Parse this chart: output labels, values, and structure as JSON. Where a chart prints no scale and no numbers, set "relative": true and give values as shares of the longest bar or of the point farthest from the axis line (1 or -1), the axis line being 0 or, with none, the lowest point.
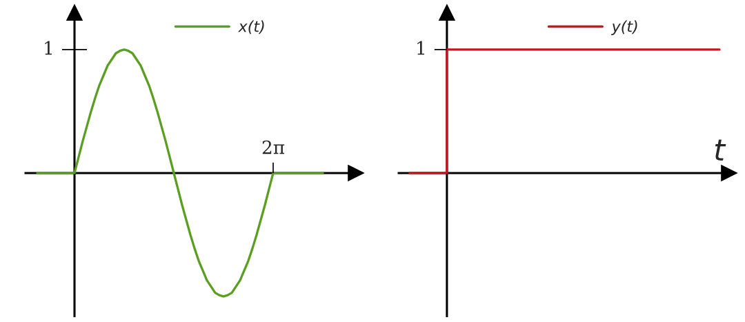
{
  "chart_data": [
    {
      "type": "line",
      "relative": true,
      "legend": "top",
      "categories": [
        null,
        null,
        null,
        null,
        null,
        null,
        null,
        null,
        null,
        null,
        null,
        null,
        null,
        null,
        null,
        null,
        null,
        null,
        null,
        null,
        null,
        null,
        null,
        null,
        null,
        null,
        null,
        null,
        null,
        null,
        null,
        null,
        null,
        null,
        null,
        null,
        null,
        null,
        null,
        null,
        null,
        null,
        null,
        null,
        null,
        null,
        null,
        null,
        null,
        null,
        null,
        null,
        null,
        null,
        null,
        null,
        null,
        null,
        null,
        null,
        null,
        null,
        null,
        null,
        null,
        null,
        null,
        null,
        null,
        null
      ],
      "annotations": [
        "1",
        "2π"
      ],
      "series": [
        {
          "name": "x(t)",
          "color": "#5a9e22",
          "values": [
            0,
            0,
            0,
            0,
            0,
            0,
            0,
            0,
            0,
            0,
            0.13,
            0.26,
            0.38,
            0.5,
            0.61,
            0.71,
            0.79,
            0.87,
            0.92,
            0.97,
            0.99,
            1,
            0.99,
            0.97,
            0.92,
            0.87,
            0.79,
            0.71,
            0.61,
            0.5,
            0.38,
            0.26,
            0.13,
            0,
            -0.13,
            -0.26,
            -0.38,
            -0.5,
            -0.61,
            -0.71,
            -0.79,
            -0.87,
            -0.92,
            -0.97,
            -0.99,
            -1,
            -0.99,
            -0.97,
            -0.92,
            -0.87,
            -0.79,
            -0.71,
            -0.61,
            -0.5,
            -0.38,
            -0.26,
            -0.13,
            0,
            0,
            0,
            0,
            0,
            0,
            0,
            0,
            0,
            0,
            0,
            0,
            0
          ]
        }
      ]
    },
    {
      "type": "step",
      "relative": true,
      "xlabel": "t",
      "legend": "top",
      "categories": [
        null,
        null,
        null,
        null,
        null,
        null,
        null,
        null,
        null,
        null,
        null,
        null,
        null,
        null,
        null,
        null,
        null,
        null,
        null,
        null,
        null,
        null,
        null,
        null,
        null,
        null
      ],
      "annotations": [
        "1"
      ],
      "series": [
        {
          "name": "y(t)",
          "color": "#c8161d",
          "values": [
            0,
            0,
            0,
            1,
            1,
            1,
            1,
            1,
            1,
            1,
            1,
            1,
            1,
            1,
            1,
            1,
            1,
            1,
            1,
            1,
            1,
            1,
            1,
            1,
            1,
            1
          ]
        }
      ]
    }
  ]
}
